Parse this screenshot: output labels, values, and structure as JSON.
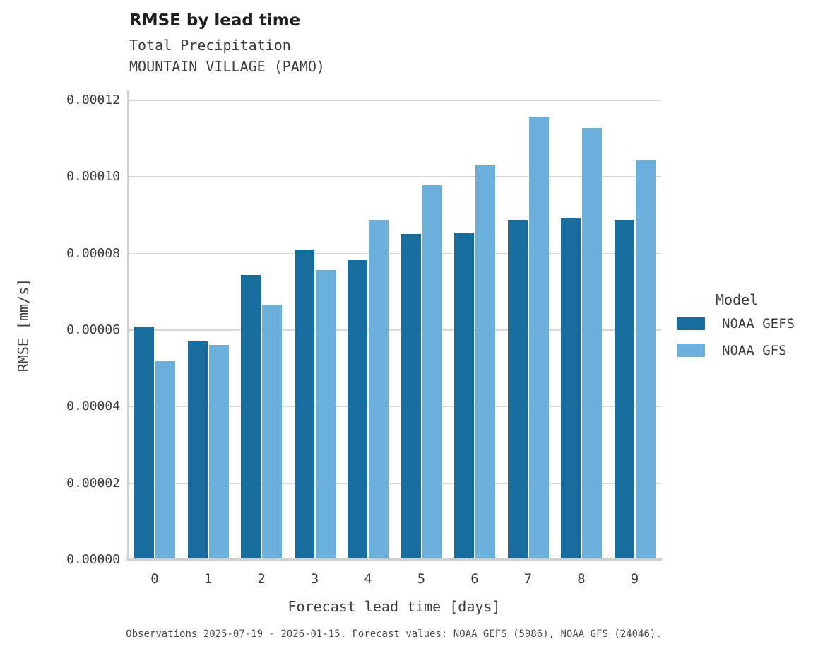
{
  "header": {
    "title": "RMSE by lead time",
    "subtitle1": "Total Precipitation",
    "subtitle2": "MOUNTAIN VILLAGE (PAMO)"
  },
  "chart_data": {
    "type": "bar",
    "title": "RMSE by lead time",
    "subtitle": [
      "Total Precipitation",
      "MOUNTAIN VILLAGE (PAMO)"
    ],
    "xlabel": "Forecast lead time [days]",
    "ylabel": "RMSE [mm/s]",
    "categories": [
      "0",
      "1",
      "2",
      "3",
      "4",
      "5",
      "6",
      "7",
      "8",
      "9"
    ],
    "series": [
      {
        "name": "NOAA GEFS",
        "color": "#186c9e",
        "values": [
          6.1e-05,
          5.71e-05,
          7.44e-05,
          8.1e-05,
          7.82e-05,
          8.51e-05,
          8.55e-05,
          8.89e-05,
          8.91e-05,
          8.89e-05
        ]
      },
      {
        "name": "NOAA GFS",
        "color": "#6bb0da",
        "values": [
          5.19e-05,
          5.62e-05,
          6.66e-05,
          7.57e-05,
          8.89e-05,
          9.79e-05,
          0.000103,
          0.0001157,
          0.0001128,
          0.0001044
        ]
      }
    ],
    "ylim": [
      0,
      0.00012
    ],
    "ytick_labels": [
      "0.00000",
      "0.00002",
      "0.00004",
      "0.00006",
      "0.00008",
      "0.00010",
      "0.00012"
    ],
    "grid": "horizontal",
    "legend_position": "right"
  },
  "legend": {
    "title": "Model",
    "items": [
      {
        "label": "NOAA GEFS",
        "color": "#186c9e"
      },
      {
        "label": "NOAA GFS",
        "color": "#6bb0da"
      }
    ]
  },
  "footer": {
    "caption": "Observations 2025-07-19 - 2026-01-15. Forecast values: NOAA GEFS (5986), NOAA GFS (24046)."
  },
  "colors": {
    "gridline": "#d9d9d9",
    "axis": "#cfcfcf"
  }
}
